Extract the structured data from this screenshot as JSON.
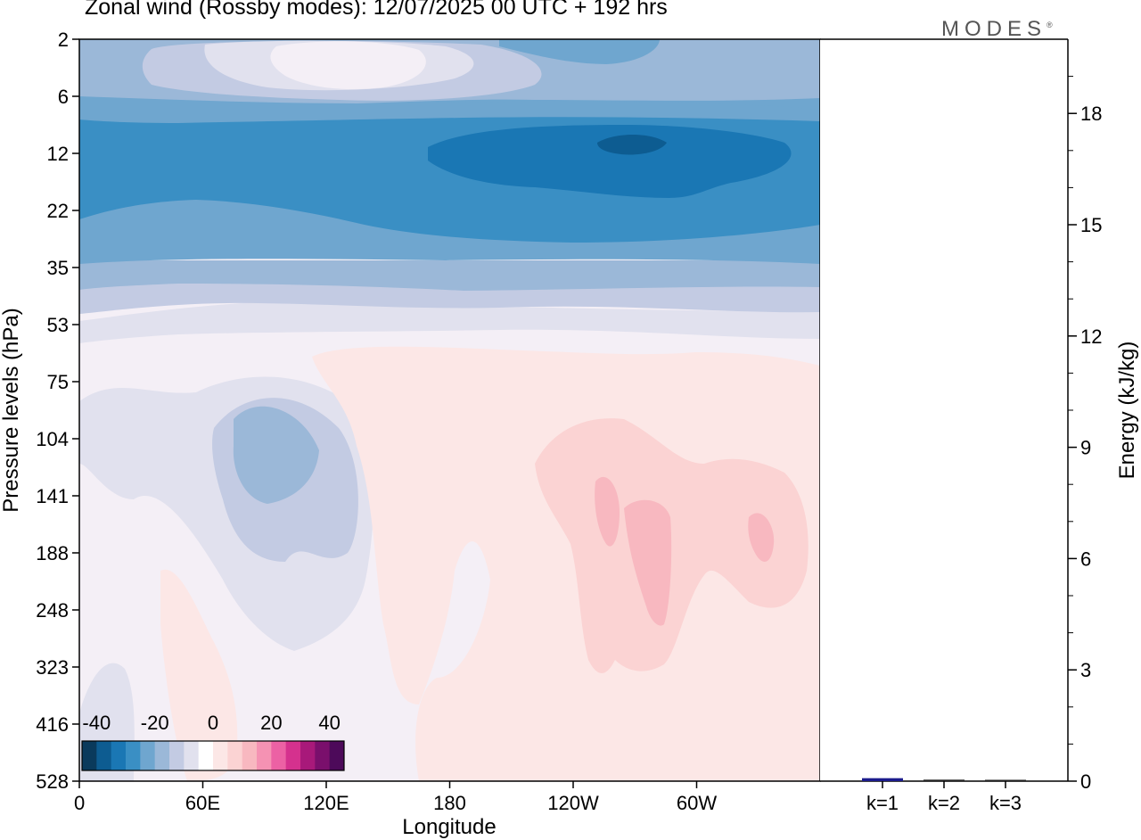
{
  "title": "Zonal wind (Rossby modes):  12/07/2025  00 UTC  + 192 hrs",
  "logo": "MODES",
  "logo_mark": "®",
  "chart_data": [
    {
      "type": "heatmap",
      "title": "Zonal wind (Rossby modes):  12/07/2025  00 UTC  + 192 hrs",
      "xlabel": "Longitude",
      "ylabel": "Pressure levels (hPa)",
      "x_ticks": [
        "0",
        "60E",
        "120E",
        "180",
        "120W",
        "60W"
      ],
      "x_tick_values": [
        0,
        60,
        120,
        180,
        240,
        300
      ],
      "x_range": [
        0,
        360
      ],
      "y_ticks": [
        "2",
        "6",
        "12",
        "22",
        "35",
        "53",
        "75",
        "104",
        "141",
        "188",
        "248",
        "323",
        "416",
        "528"
      ],
      "colorbar": {
        "tick_labels": [
          "-40",
          "-20",
          "0",
          "20",
          "40"
        ],
        "tick_values": [
          -40,
          -20,
          0,
          20,
          40
        ],
        "range": [
          -45,
          45
        ],
        "step": 5,
        "colors": [
          "#0a3a5c",
          "#0d5c91",
          "#1a77b4",
          "#3a8fc4",
          "#6fa6cf",
          "#9bb8d8",
          "#c3cbe3",
          "#e1e1ee",
          "#ffffff",
          "#fce7e6",
          "#fbd3d3",
          "#f8b8c0",
          "#f592b3",
          "#ec61a4",
          "#d5318e",
          "#a8197a",
          "#7a0f6c",
          "#4d0a5a"
        ]
      },
      "regions": [
        {
          "desc": "upper-level weak easterly belt",
          "levels": "2-6",
          "value": -15
        },
        {
          "desc": "strong easterly jet core",
          "levels": "10-16",
          "lon_range": [
            250,
            285
          ],
          "value": -40
        },
        {
          "desc": "easterly band",
          "levels": "6-30",
          "value": -30
        },
        {
          "desc": "trough feature",
          "levels": "90-160",
          "lon_range": [
            75,
            115
          ],
          "value": -15
        },
        {
          "desc": "westerly maxima",
          "levels": "120-250",
          "lon_range": [
            250,
            335
          ],
          "value": 15
        }
      ]
    },
    {
      "type": "bar",
      "ylabel": "Energy (kJ/kg)",
      "categories": [
        "k=1",
        "k=2",
        "k=3"
      ],
      "values": [
        0.08,
        0.04,
        0.02
      ],
      "ylim": [
        0,
        20
      ],
      "y_ticks": [
        "0",
        "3",
        "6",
        "9",
        "12",
        "15",
        "18"
      ],
      "y_tick_values": [
        0,
        3,
        6,
        9,
        12,
        15,
        18
      ],
      "bar_colors": [
        "#1b1b8c",
        "#222222",
        "#222222"
      ]
    }
  ]
}
